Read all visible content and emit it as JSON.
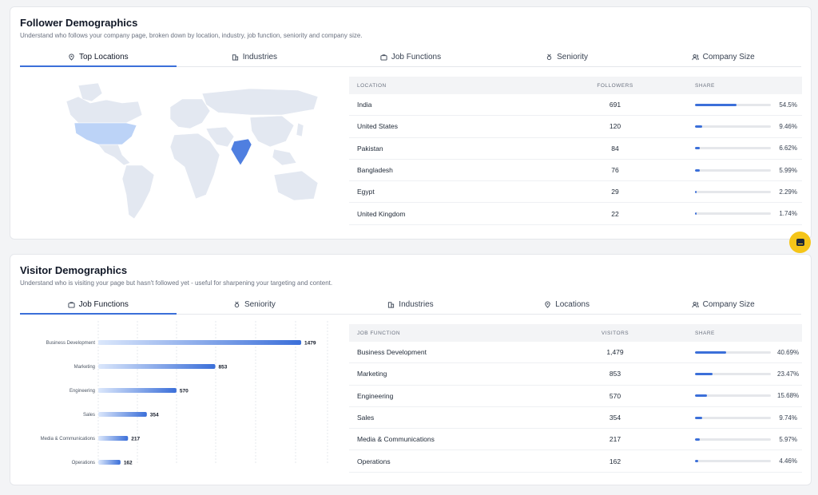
{
  "follower": {
    "title": "Follower Demographics",
    "subtitle": "Understand who follows your company page, broken down by location, industry, job function, seniority and company size.",
    "tabs": [
      "Top Locations",
      "Industries",
      "Job Functions",
      "Seniority",
      "Company Size"
    ],
    "active_tab": "Top Locations",
    "table": {
      "headers": [
        "LOCATION",
        "FOLLOWERS",
        "SHARE"
      ],
      "rows": [
        {
          "name": "India",
          "count": "691",
          "share": "54.5%",
          "fraction": 0.545
        },
        {
          "name": "United States",
          "count": "120",
          "share": "9.46%",
          "fraction": 0.0946
        },
        {
          "name": "Pakistan",
          "count": "84",
          "share": "6.62%",
          "fraction": 0.0662
        },
        {
          "name": "Bangladesh",
          "count": "76",
          "share": "5.99%",
          "fraction": 0.0599
        },
        {
          "name": "Egypt",
          "count": "29",
          "share": "2.29%",
          "fraction": 0.0229
        },
        {
          "name": "United Kingdom",
          "count": "22",
          "share": "1.74%",
          "fraction": 0.0174
        }
      ]
    },
    "map_colors": {
      "base": "#e3e8f1",
      "us": "#bcd3f7",
      "india": "#4f7fe0"
    }
  },
  "visitor": {
    "title": "Visitor Demographics",
    "subtitle": "Understand who is visiting your page but hasn't followed yet - useful for sharpening your targeting and content.",
    "tabs": [
      "Job Functions",
      "Seniority",
      "Industries",
      "Locations",
      "Company Size"
    ],
    "active_tab": "Job Functions",
    "table": {
      "headers": [
        "JOB FUNCTION",
        "VISITORS",
        "SHARE"
      ],
      "rows": [
        {
          "name": "Business Development",
          "count": "1,479",
          "share": "40.69%",
          "fraction": 0.4069
        },
        {
          "name": "Marketing",
          "count": "853",
          "share": "23.47%",
          "fraction": 0.2347
        },
        {
          "name": "Engineering",
          "count": "570",
          "share": "15.68%",
          "fraction": 0.1568
        },
        {
          "name": "Sales",
          "count": "354",
          "share": "9.74%",
          "fraction": 0.0974
        },
        {
          "name": "Media & Communications",
          "count": "217",
          "share": "5.97%",
          "fraction": 0.0597
        },
        {
          "name": "Operations",
          "count": "162",
          "share": "4.46%",
          "fraction": 0.0446
        }
      ]
    }
  },
  "chart_data": {
    "type": "bar",
    "orientation": "horizontal",
    "categories": [
      "Business Development",
      "Marketing",
      "Engineering",
      "Sales",
      "Media & Communications",
      "Operations"
    ],
    "values": [
      1479,
      853,
      570,
      354,
      217,
      162
    ],
    "xlim": [
      0,
      1700
    ],
    "grid": true,
    "colors": {
      "bar_start": "#dbe7fb",
      "bar_end": "#3b6fd9"
    }
  },
  "accent": "#3b6fd9",
  "fab_color": "#f5c518",
  "icons": {
    "Top Locations": "pin-icon",
    "Locations": "pin-icon",
    "Industries": "building-icon",
    "Job Functions": "briefcase-icon",
    "Seniority": "medal-icon",
    "Company Size": "users-icon"
  }
}
